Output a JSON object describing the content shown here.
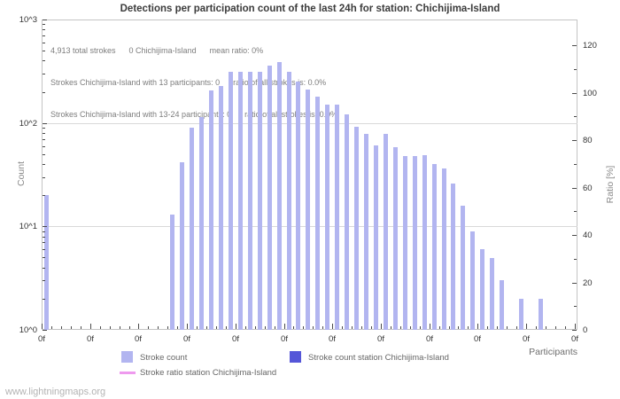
{
  "title": "Detections per participation count of the last 24h for station: Chichijima-Island",
  "annotation": {
    "line1": "4,913 total strokes      0 Chichijima-Island      mean ratio: 0%",
    "line2": "Strokes Chichijima-Island with 13 participants: 0      ratio of all strokes is: 0.0%",
    "line3": "Strokes Chichijima-Island with 13-24 participants: 0      ratio of all strokes is: 0.0%"
  },
  "axes": {
    "left": {
      "label": "Count",
      "scale": "log10",
      "tick_labels": [
        "10^3",
        "10^2",
        "10^1",
        "10^0"
      ]
    },
    "right": {
      "label": "Ratio [%]",
      "scale": "linear",
      "tick_labels": [
        "120",
        "100",
        "80",
        "60",
        "40",
        "20",
        "0"
      ],
      "tick_values": [
        120,
        100,
        80,
        60,
        40,
        20,
        0
      ]
    },
    "bottom": {
      "label": "Participants",
      "tick_labels": [
        "0f",
        "0f",
        "0f",
        "0f",
        "0f",
        "0f",
        "0f",
        "0f",
        "0f",
        "0f",
        "0f",
        "0f"
      ]
    }
  },
  "legend": {
    "items": [
      {
        "swatch": "light-square",
        "label": "Stroke count"
      },
      {
        "swatch": "dark-square",
        "label": "Stroke count station Chichijima-Island"
      },
      {
        "swatch": "pink-line",
        "label": "Stroke ratio station Chichijima-Island"
      }
    ]
  },
  "watermark": "www.lightningmaps.org",
  "colors": {
    "bar_stroke_count": "#b2b5f0",
    "bar_station": "#5556d8",
    "ratio_line": "#ee9aee",
    "gridline": "#d9d9d9",
    "frame": "#c4c4c4",
    "title_text": "#3c3c3c",
    "annotation_text": "#7d7d7d",
    "watermark_text": "#b3b3b3"
  },
  "chart_data": {
    "type": "bar",
    "title": "Detections per participation count of the last 24h for station: Chichijima-Island",
    "xlabel": "Participants",
    "ylabel": "Count",
    "y2label": "Ratio [%]",
    "y_scale": "log10",
    "ylim": [
      1,
      1000
    ],
    "y2lim": [
      0,
      120
    ],
    "xlim": [
      0,
      55.3
    ],
    "grid": "horizontal-decades",
    "legend_position": "below",
    "x_participants": [
      0,
      13,
      14,
      15,
      16,
      17,
      18,
      19,
      20,
      21,
      22,
      23,
      24,
      25,
      26,
      27,
      28,
      29,
      30,
      31,
      32,
      33,
      34,
      35,
      36,
      37,
      38,
      39,
      40,
      41,
      42,
      43,
      44,
      45,
      46,
      47,
      49,
      51
    ],
    "series": [
      {
        "name": "Stroke count",
        "values": [
          20,
          13,
          42,
          90,
          115,
          205,
          230,
          310,
          310,
          315,
          310,
          360,
          385,
          310,
          250,
          210,
          180,
          150,
          152,
          120,
          91,
          78,
          61,
          79,
          58,
          48,
          48,
          49,
          40,
          36,
          26,
          16,
          9,
          6,
          5,
          3,
          2,
          2
        ]
      },
      {
        "name": "Stroke count station Chichijima-Island",
        "values": [
          0,
          0,
          0,
          0,
          0,
          0,
          0,
          0,
          0,
          0,
          0,
          0,
          0,
          0,
          0,
          0,
          0,
          0,
          0,
          0,
          0,
          0,
          0,
          0,
          0,
          0,
          0,
          0,
          0,
          0,
          0,
          0,
          0,
          0,
          0,
          0,
          0,
          0
        ]
      },
      {
        "name": "Stroke ratio station Chichijima-Island",
        "axis": "right",
        "values": [
          0,
          0,
          0,
          0,
          0,
          0,
          0,
          0,
          0,
          0,
          0,
          0,
          0,
          0,
          0,
          0,
          0,
          0,
          0,
          0,
          0,
          0,
          0,
          0,
          0,
          0,
          0,
          0,
          0,
          0,
          0,
          0,
          0,
          0,
          0,
          0,
          0,
          0
        ]
      }
    ],
    "totals": {
      "total_strokes": "4,913",
      "station_strokes": 0,
      "mean_ratio_percent": 0
    }
  }
}
